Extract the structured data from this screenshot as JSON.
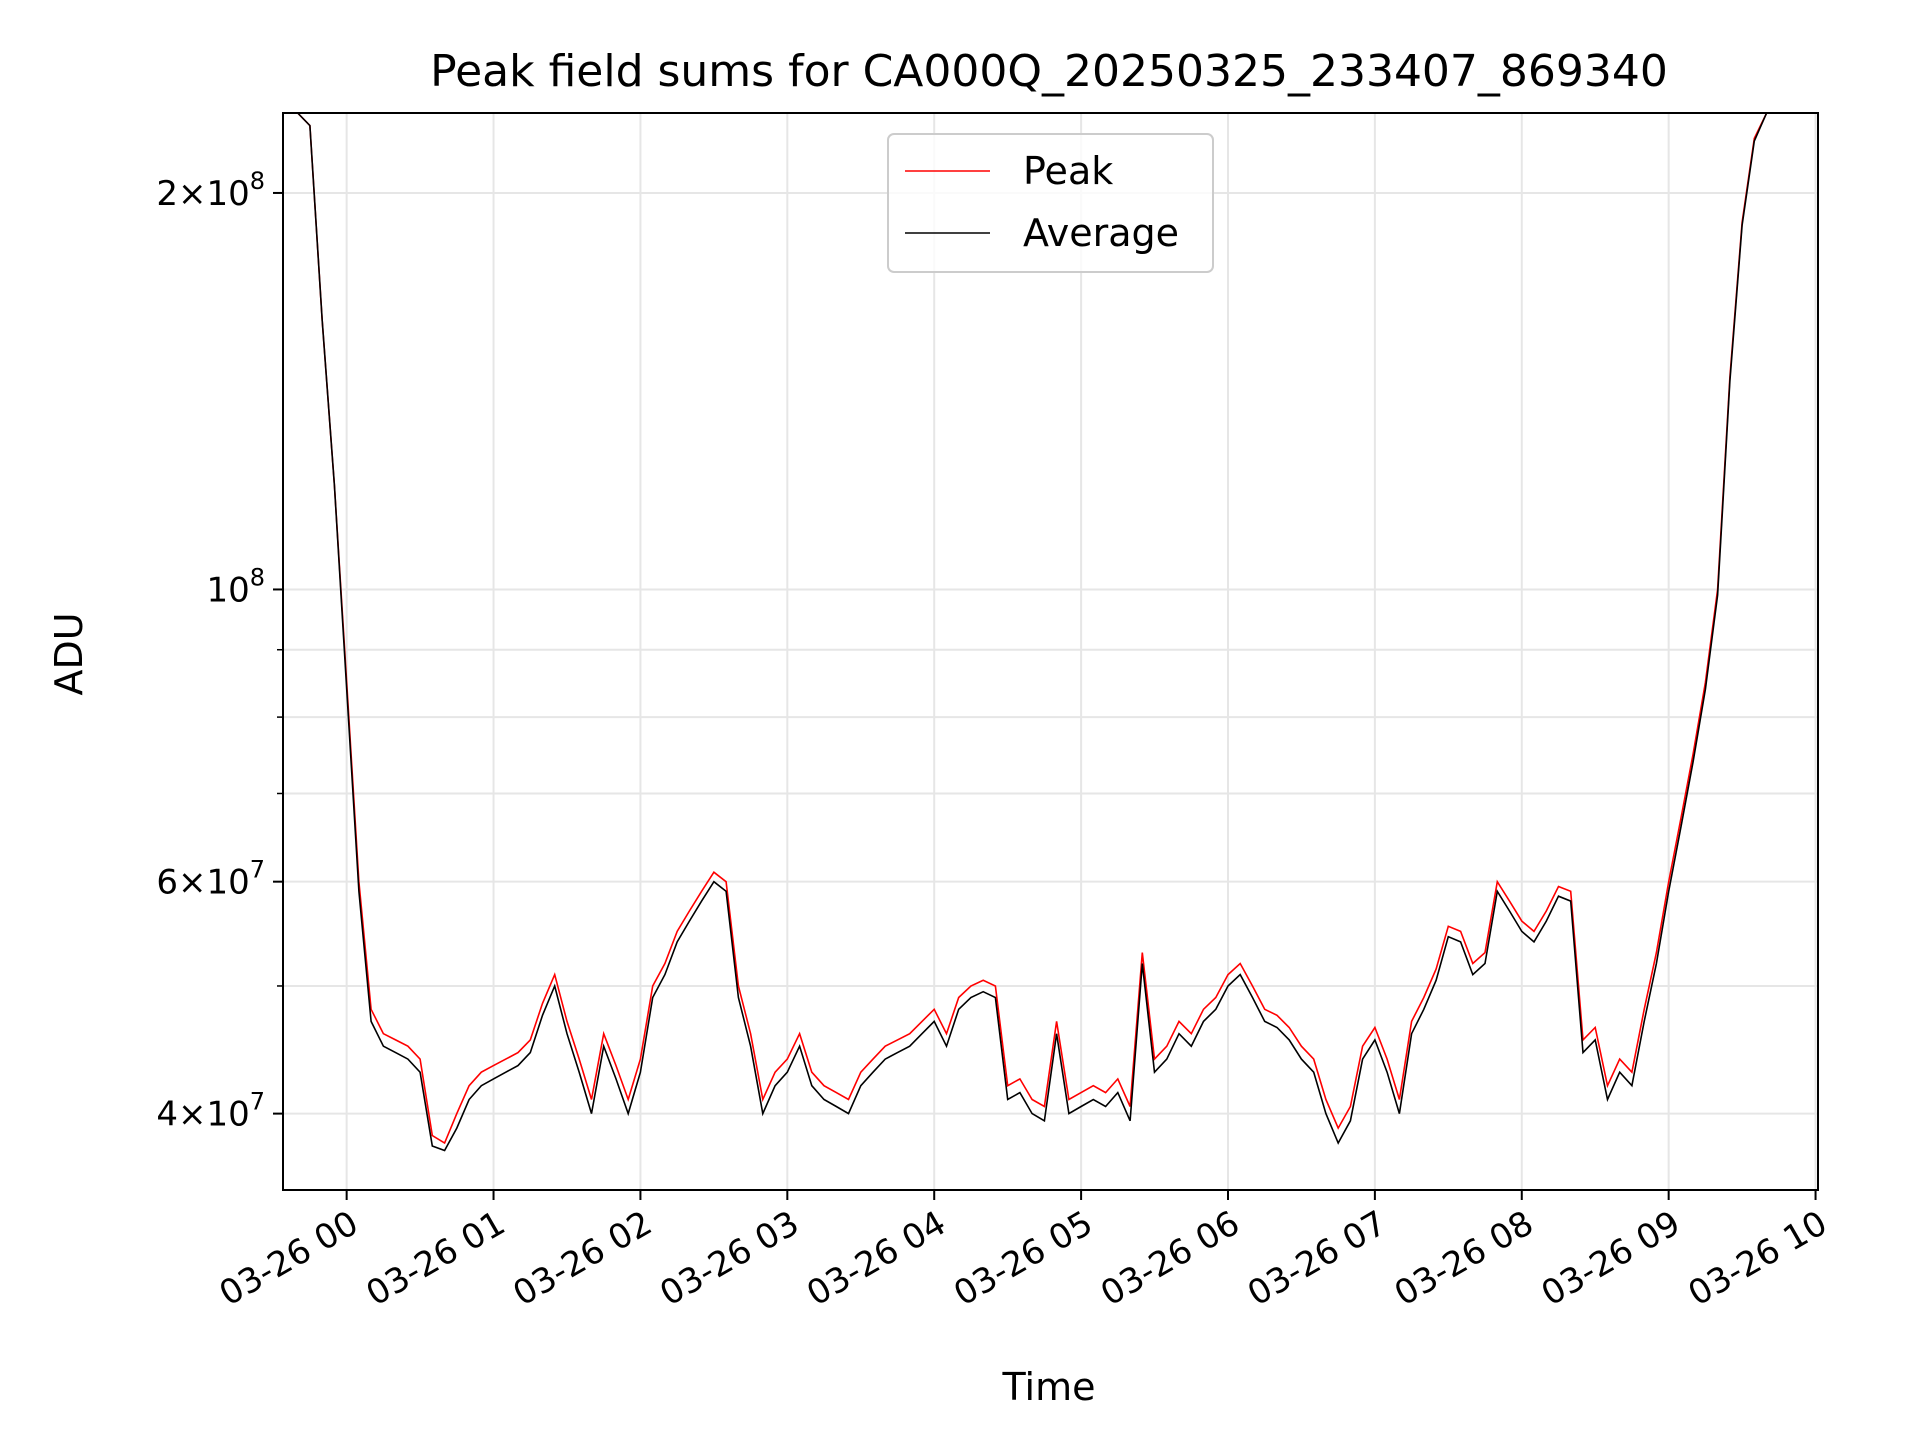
{
  "chart_data": {
    "type": "line",
    "title": "Peak field sums for CA000Q_20250325_233407_869340",
    "xlabel": "Time",
    "ylabel": "ADU",
    "y_scale": "log",
    "ylim": [
      35000000,
      230000000
    ],
    "xlim": [
      "2025-03-25 23:34",
      "2025-03-26 10:01"
    ],
    "x_ticks": [
      {
        "value": "2025-03-26 00:00",
        "label": "03-26 00"
      },
      {
        "value": "2025-03-26 01:00",
        "label": "03-26 01"
      },
      {
        "value": "2025-03-26 02:00",
        "label": "03-26 02"
      },
      {
        "value": "2025-03-26 03:00",
        "label": "03-26 03"
      },
      {
        "value": "2025-03-26 04:00",
        "label": "03-26 04"
      },
      {
        "value": "2025-03-26 05:00",
        "label": "03-26 05"
      },
      {
        "value": "2025-03-26 06:00",
        "label": "03-26 06"
      },
      {
        "value": "2025-03-26 07:00",
        "label": "03-26 07"
      },
      {
        "value": "2025-03-26 08:00",
        "label": "03-26 08"
      },
      {
        "value": "2025-03-26 09:00",
        "label": "03-26 09"
      },
      {
        "value": "2025-03-26 10:00",
        "label": "03-26 10"
      }
    ],
    "y_major_ticks": [
      {
        "value": 40000000,
        "mantissa": "4",
        "exp": "7"
      },
      {
        "value": 60000000,
        "mantissa": "6",
        "exp": "7"
      },
      {
        "value": 100000000,
        "mantissa": "",
        "exp": "8"
      },
      {
        "value": 200000000,
        "mantissa": "2",
        "exp": "8"
      }
    ],
    "y_minor_ticks": [
      50000000,
      70000000,
      80000000,
      90000000
    ],
    "grid": true,
    "legend": {
      "position": "upper-center"
    },
    "series": [
      {
        "name": "Peak",
        "color": "#ff0000"
      },
      {
        "name": "Average",
        "color": "#000000"
      }
    ],
    "x": [
      "2025-03-25 23:34",
      "2025-03-25 23:40",
      "2025-03-25 23:45",
      "2025-03-25 23:50",
      "2025-03-25 23:55",
      "2025-03-26 00:00",
      "2025-03-26 00:05",
      "2025-03-26 00:10",
      "2025-03-26 00:15",
      "2025-03-26 00:20",
      "2025-03-26 00:25",
      "2025-03-26 00:30",
      "2025-03-26 00:35",
      "2025-03-26 00:40",
      "2025-03-26 00:45",
      "2025-03-26 00:50",
      "2025-03-26 00:55",
      "2025-03-26 01:00",
      "2025-03-26 01:05",
      "2025-03-26 01:10",
      "2025-03-26 01:15",
      "2025-03-26 01:20",
      "2025-03-26 01:25",
      "2025-03-26 01:30",
      "2025-03-26 01:35",
      "2025-03-26 01:40",
      "2025-03-26 01:45",
      "2025-03-26 01:50",
      "2025-03-26 01:55",
      "2025-03-26 02:00",
      "2025-03-26 02:05",
      "2025-03-26 02:10",
      "2025-03-26 02:15",
      "2025-03-26 02:20",
      "2025-03-26 02:25",
      "2025-03-26 02:30",
      "2025-03-26 02:35",
      "2025-03-26 02:40",
      "2025-03-26 02:45",
      "2025-03-26 02:50",
      "2025-03-26 02:55",
      "2025-03-26 03:00",
      "2025-03-26 03:05",
      "2025-03-26 03:10",
      "2025-03-26 03:15",
      "2025-03-26 03:20",
      "2025-03-26 03:25",
      "2025-03-26 03:30",
      "2025-03-26 03:35",
      "2025-03-26 03:40",
      "2025-03-26 03:45",
      "2025-03-26 03:50",
      "2025-03-26 03:55",
      "2025-03-26 04:00",
      "2025-03-26 04:05",
      "2025-03-26 04:10",
      "2025-03-26 04:15",
      "2025-03-26 04:20",
      "2025-03-26 04:25",
      "2025-03-26 04:30",
      "2025-03-26 04:35",
      "2025-03-26 04:40",
      "2025-03-26 04:45",
      "2025-03-26 04:50",
      "2025-03-26 04:55",
      "2025-03-26 05:00",
      "2025-03-26 05:05",
      "2025-03-26 05:10",
      "2025-03-26 05:15",
      "2025-03-26 05:20",
      "2025-03-26 05:25",
      "2025-03-26 05:30",
      "2025-03-26 05:35",
      "2025-03-26 05:40",
      "2025-03-26 05:45",
      "2025-03-26 05:50",
      "2025-03-26 05:55",
      "2025-03-26 06:00",
      "2025-03-26 06:05",
      "2025-03-26 06:10",
      "2025-03-26 06:15",
      "2025-03-26 06:20",
      "2025-03-26 06:25",
      "2025-03-26 06:30",
      "2025-03-26 06:35",
      "2025-03-26 06:40",
      "2025-03-26 06:45",
      "2025-03-26 06:50",
      "2025-03-26 06:55",
      "2025-03-26 07:00",
      "2025-03-26 07:05",
      "2025-03-26 07:10",
      "2025-03-26 07:15",
      "2025-03-26 07:20",
      "2025-03-26 07:25",
      "2025-03-26 07:30",
      "2025-03-26 07:35",
      "2025-03-26 07:40",
      "2025-03-26 07:45",
      "2025-03-26 07:50",
      "2025-03-26 07:55",
      "2025-03-26 08:00",
      "2025-03-26 08:05",
      "2025-03-26 08:10",
      "2025-03-26 08:15",
      "2025-03-26 08:20",
      "2025-03-26 08:25",
      "2025-03-26 08:30",
      "2025-03-26 08:35",
      "2025-03-26 08:40",
      "2025-03-26 08:45",
      "2025-03-26 08:50",
      "2025-03-26 08:55",
      "2025-03-26 09:00",
      "2025-03-26 09:05",
      "2025-03-26 09:10",
      "2025-03-26 09:15",
      "2025-03-26 09:20",
      "2025-03-26 09:25",
      "2025-03-26 09:30",
      "2025-03-26 09:35",
      "2025-03-26 09:40",
      "2025-03-26 09:45",
      "2025-03-26 09:50",
      "2025-03-26 09:55",
      "2025-03-26 10:00"
    ],
    "peak_values": [
      230000000,
      230000000,
      225000000,
      160000000,
      120000000,
      85000000,
      60000000,
      48000000,
      46000000,
      45500000,
      45000000,
      44000000,
      38500000,
      38000000,
      40000000,
      42000000,
      43000000,
      43500000,
      44000000,
      44500000,
      45500000,
      48500000,
      51000000,
      47000000,
      44000000,
      41000000,
      46000000,
      43500000,
      41000000,
      44000000,
      50000000,
      52000000,
      55000000,
      57000000,
      59000000,
      61000000,
      60000000,
      50000000,
      46000000,
      41000000,
      43000000,
      44000000,
      46000000,
      43000000,
      42000000,
      41500000,
      41000000,
      43000000,
      44000000,
      45000000,
      45500000,
      46000000,
      47000000,
      48000000,
      46000000,
      49000000,
      50000000,
      50500000,
      50000000,
      42000000,
      42500000,
      41000000,
      40500000,
      47000000,
      41000000,
      41500000,
      42000000,
      41500000,
      42500000,
      40500000,
      53000000,
      44000000,
      45000000,
      47000000,
      46000000,
      48000000,
      49000000,
      51000000,
      52000000,
      50000000,
      48000000,
      47500000,
      46500000,
      45000000,
      44000000,
      41000000,
      39000000,
      40500000,
      45000000,
      46500000,
      44000000,
      41000000,
      47000000,
      49000000,
      51500000,
      55500000,
      55000000,
      52000000,
      53000000,
      60000000,
      58000000,
      56000000,
      55000000,
      57000000,
      59500000,
      59000000,
      45500000,
      46500000,
      42000000,
      44000000,
      43000000,
      48000000,
      53000000,
      60000000,
      67000000,
      75000000,
      85000000,
      100000000,
      145000000,
      190000000,
      220000000,
      230000000,
      230000000
    ],
    "average_values": [
      230000000,
      230000000,
      225000000,
      160000000,
      120000000,
      84000000,
      59000000,
      47000000,
      45000000,
      44500000,
      44000000,
      43000000,
      37800000,
      37500000,
      39000000,
      41000000,
      42000000,
      42500000,
      43000000,
      43500000,
      44500000,
      47500000,
      50000000,
      46000000,
      43000000,
      40000000,
      45000000,
      42500000,
      40000000,
      43000000,
      49000000,
      51000000,
      54000000,
      56000000,
      58000000,
      60000000,
      59000000,
      49000000,
      45000000,
      40000000,
      42000000,
      43000000,
      45000000,
      42000000,
      41000000,
      40500000,
      40000000,
      42000000,
      43000000,
      44000000,
      44500000,
      45000000,
      46000000,
      47000000,
      45000000,
      48000000,
      49000000,
      49500000,
      49000000,
      41000000,
      41500000,
      40000000,
      39500000,
      46000000,
      40000000,
      40500000,
      41000000,
      40500000,
      41500000,
      39500000,
      52000000,
      43000000,
      44000000,
      46000000,
      45000000,
      47000000,
      48000000,
      50000000,
      51000000,
      49000000,
      47000000,
      46500000,
      45500000,
      44000000,
      43000000,
      40000000,
      38000000,
      39500000,
      44000000,
      45500000,
      43000000,
      40000000,
      46000000,
      48000000,
      50500000,
      54500000,
      54000000,
      51000000,
      52000000,
      59000000,
      57000000,
      55000000,
      54000000,
      56000000,
      58500000,
      58000000,
      44500000,
      45500000,
      41000000,
      43000000,
      42000000,
      47000000,
      52000000,
      59000000,
      66000000,
      74000000,
      84000000,
      99000000,
      144000000,
      189000000,
      219000000,
      230000000,
      230000000
    ]
  }
}
